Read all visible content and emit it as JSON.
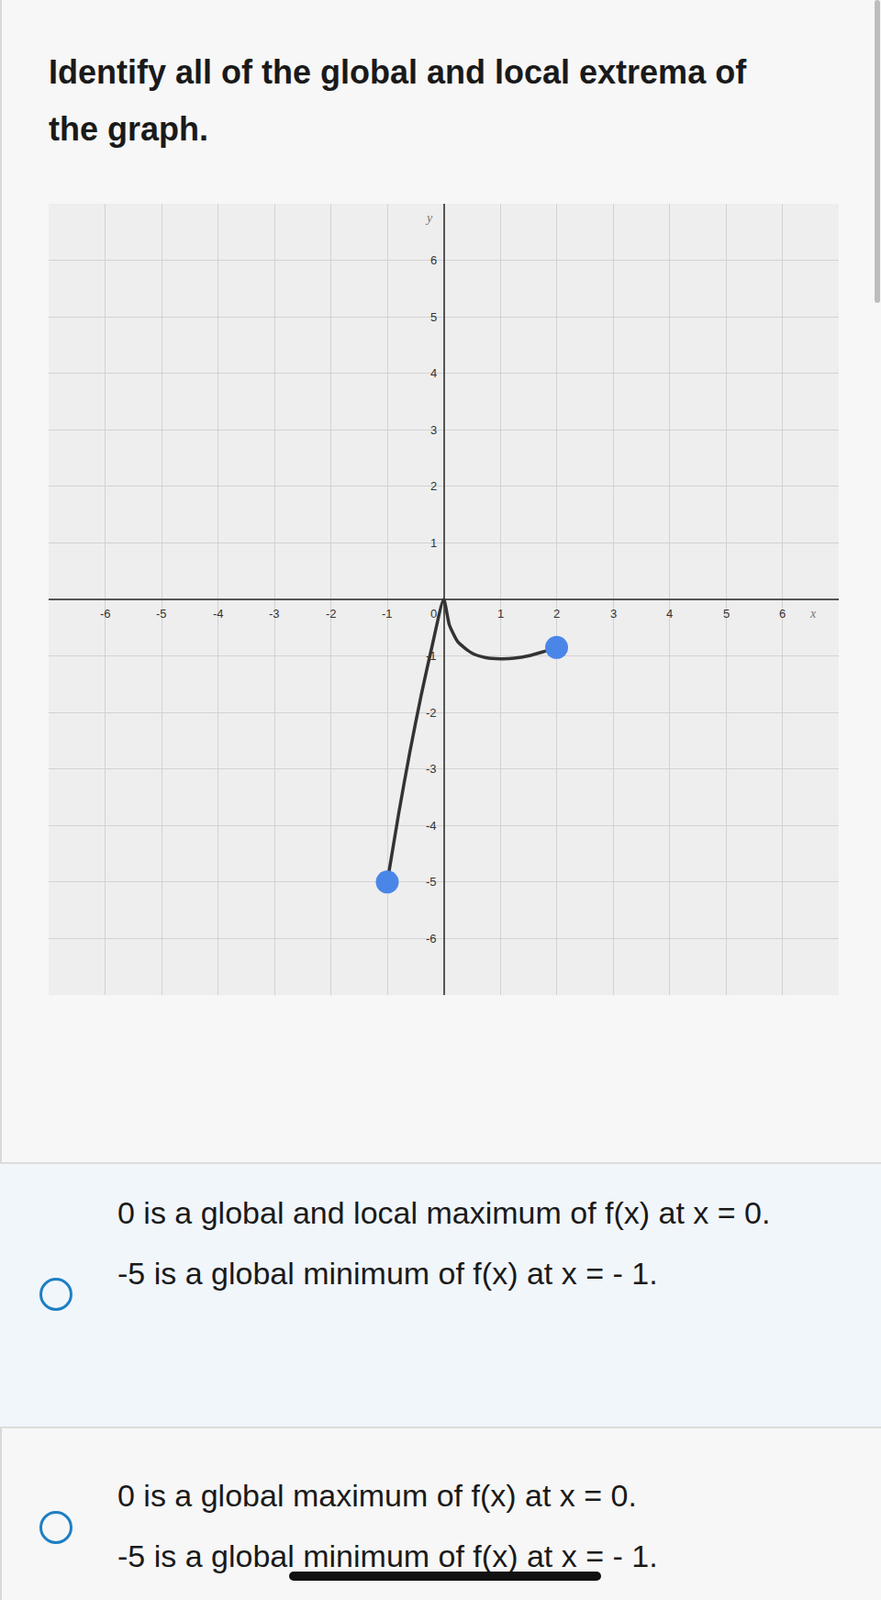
{
  "question": [
    "Identify all of the global and local extrema of",
    "the graph."
  ],
  "chart_data": {
    "type": "line",
    "x_label": "x",
    "y_label": "y",
    "x": [
      -1,
      -0.8,
      -0.6,
      -0.4,
      -0.2,
      0,
      0.1,
      0.25,
      0.5,
      0.75,
      1,
      1.25,
      1.5,
      1.75,
      2
    ],
    "values": [
      -5,
      -3.8,
      -2.7,
      -1.7,
      -0.8,
      0,
      -0.45,
      -0.75,
      -0.95,
      -1.03,
      -1.05,
      -1.04,
      -1.0,
      -0.93,
      -0.85
    ],
    "color": "#333333",
    "marker": "endpoints",
    "xlim": [
      -7,
      7
    ],
    "ylim": [
      -7,
      7
    ],
    "xticks": [
      -6,
      -5,
      -4,
      -3,
      -2,
      -1,
      0,
      1,
      2,
      3,
      4,
      5,
      6
    ],
    "yticks": [
      -6,
      -5,
      -4,
      -3,
      -2,
      -1,
      1,
      2,
      3,
      4,
      5,
      6
    ],
    "grid": true
  },
  "options": [
    [
      "0 is a global and local maximum of f(x) at x = 0.",
      "-5 is a global minimum of f(x) at x = - 1."
    ],
    [
      "0 is a global maximum of f(x) at x = 0.",
      "-5 is a global minimum of f(x) at x = - 1."
    ]
  ]
}
